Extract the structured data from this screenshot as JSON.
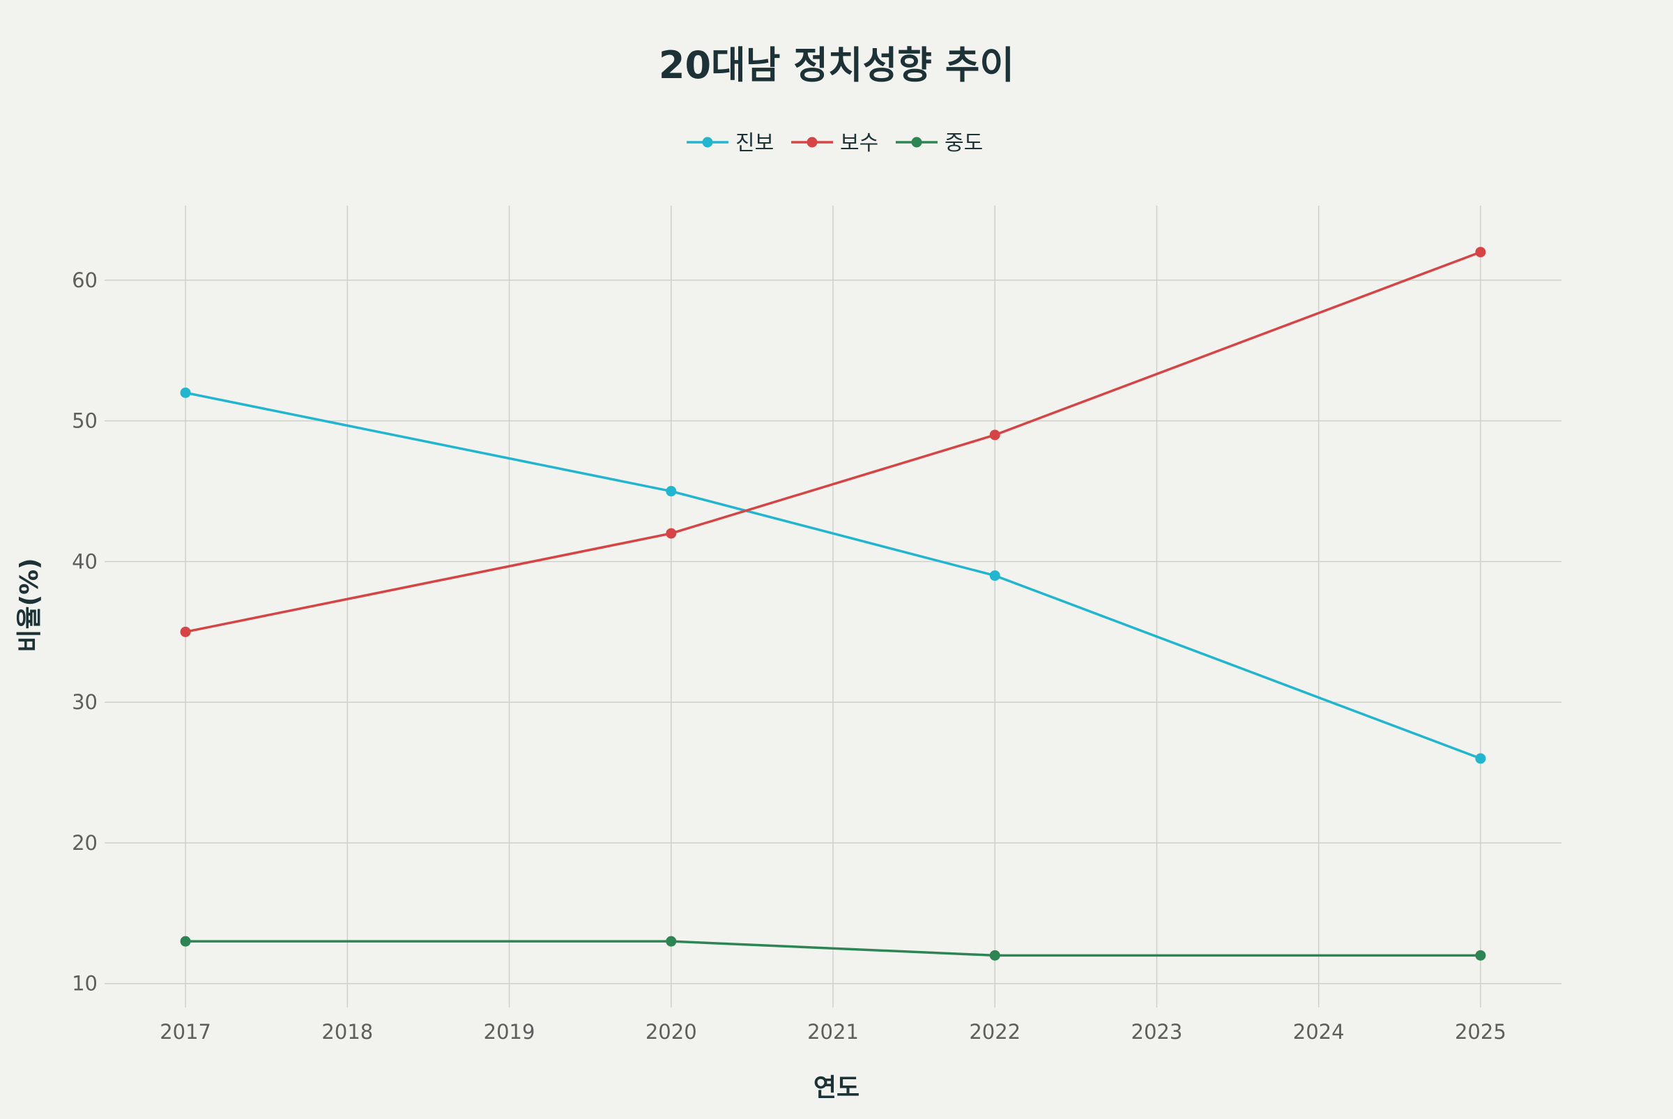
{
  "chart_data": {
    "type": "line",
    "title": "20대남 정치성향 추이",
    "xlabel": "연도",
    "ylabel": "비율(%)",
    "x_ticks": [
      "2017",
      "2018",
      "2019",
      "2020",
      "2021",
      "2022",
      "2023",
      "2024",
      "2025"
    ],
    "y_ticks": [
      10,
      20,
      30,
      40,
      50,
      60
    ],
    "xlim": [
      2016.5,
      2025.5
    ],
    "ylim": [
      8.3,
      65.3
    ],
    "grid": true,
    "legend_position": "top-center",
    "series": [
      {
        "name": "진보",
        "color": "#21b5cf",
        "x": [
          2017,
          2020,
          2022,
          2025
        ],
        "values": [
          52,
          45,
          39,
          26
        ]
      },
      {
        "name": "보수",
        "color": "#d64545",
        "x": [
          2017,
          2020,
          2022,
          2025
        ],
        "values": [
          35,
          42,
          49,
          62
        ]
      },
      {
        "name": "중도",
        "color": "#2e8554",
        "x": [
          2017,
          2020,
          2022,
          2025
        ],
        "values": [
          13,
          13,
          12,
          12
        ]
      }
    ]
  }
}
